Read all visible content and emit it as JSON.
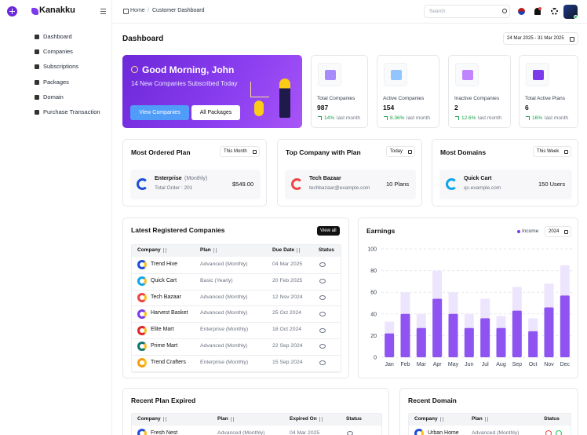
{
  "sidebar": {
    "brand": "Kanakku",
    "menu": [
      "Dashboard",
      "Companies",
      "Subscriptions",
      "Packages",
      "Domain",
      "Purchase Transaction"
    ]
  },
  "topbar": {
    "breadcrumb": [
      "Home",
      "/",
      "Customer Dashboard"
    ],
    "search_placeholder": "Search"
  },
  "page": {
    "title": "Dashboard",
    "date_range": "24 Mar 2025 - 31 Mar 2025"
  },
  "welcome": {
    "greeting": "Good Morning, John",
    "subtitle": "14 New Companies Subscribed Today",
    "buttons": [
      "View Companies",
      "All Packages"
    ]
  },
  "stats": [
    {
      "label": "Total Companies",
      "value": "987",
      "change": "14%",
      "period": "last month"
    },
    {
      "label": "Active Companies",
      "value": "154",
      "change": "8.36%",
      "period": "last month"
    },
    {
      "label": "Inactive Companies",
      "value": "2",
      "change": "12.6%",
      "period": "last month"
    },
    {
      "label": "Total Active Plans",
      "value": "6",
      "change": "16%",
      "period": "last month"
    }
  ],
  "highlights": [
    {
      "title": "Most Ordered Plan",
      "filter": "This Month",
      "name": "Enterprise",
      "name_suffix": "(Monthly)",
      "detail": "Total Order : 201",
      "value": "$549.00"
    },
    {
      "title": "Top Company with Plan",
      "filter": "Today",
      "name": "Tech Bazaar",
      "detail": "techbazaar@example.com",
      "value": "10 Plans"
    },
    {
      "title": "Most Domains",
      "filter": "This Week",
      "name": "Quick Cart",
      "detail": "qc.example.com",
      "value": "150 Users"
    }
  ],
  "latest_companies": {
    "title": "Latest Registered Companies",
    "button": "View all",
    "columns": [
      "Company",
      "Plan",
      "Due Date",
      "Status"
    ],
    "rows": [
      [
        "Trend Hive",
        "Advanced (Monthly)",
        "04 Mar 2025"
      ],
      [
        "Quick Cart",
        "Basic (Yearly)",
        "20 Feb 2025"
      ],
      [
        "Tech Bazaar",
        "Advanced (Monthly)",
        "12 Nov 2024"
      ],
      [
        "Harvest Basket",
        "Advanced (Monthly)",
        "25 Oct 2024"
      ],
      [
        "Elite Mart",
        "Enterprise (Monthly)",
        "18 Oct 2024"
      ],
      [
        "Prime Mart",
        "Advanced (Monthly)",
        "22 Sep 2024"
      ],
      [
        "Trend Crafters",
        "Enterprise (Monthly)",
        "15 Sep 2024"
      ]
    ]
  },
  "chart_data": {
    "type": "bar",
    "title": "Earnings",
    "filter": "2024",
    "categories": [
      "Jan",
      "Feb",
      "Mar",
      "Apr",
      "May",
      "Jun",
      "Jul",
      "Aug",
      "Sep",
      "Oct",
      "Nov",
      "Dec"
    ],
    "series": [
      {
        "name": "Income",
        "color": "#7c3aed",
        "values": [
          22,
          40,
          27,
          54,
          40,
          27,
          36,
          27,
          43,
          24,
          46,
          57
        ]
      },
      {
        "color": "#ede5fd",
        "values": [
          33,
          60,
          40,
          80,
          60,
          40,
          54,
          38,
          65,
          36,
          68,
          85
        ]
      }
    ],
    "ylim": [
      0,
      100
    ],
    "yticks": [
      0,
      20,
      40,
      60,
      80,
      100
    ],
    "grid": true
  },
  "recent_plan_expired": {
    "title": "Recent Plan Expired",
    "columns": [
      "Company",
      "Plan",
      "Expired On",
      "Status"
    ],
    "rows": [
      [
        "Fresh Nest",
        "Advanced (Monthly)",
        "04 Mar 2025"
      ]
    ]
  },
  "recent_domain": {
    "title": "Recent Domain",
    "columns": [
      "Company",
      "Plan",
      "Status"
    ],
    "rows": [
      [
        "Urban Home",
        "Advanced (Monthly)"
      ]
    ]
  }
}
